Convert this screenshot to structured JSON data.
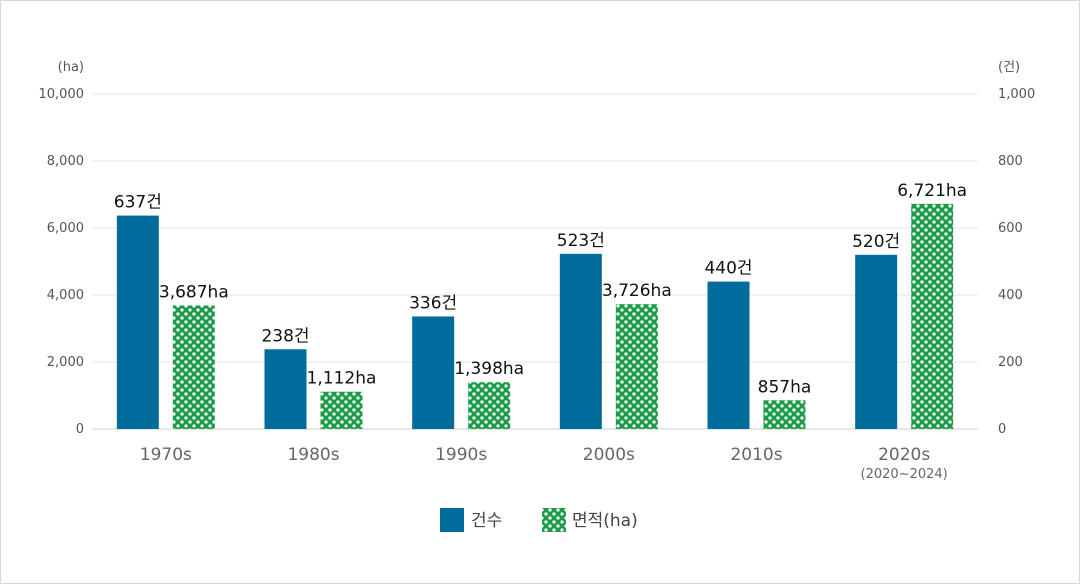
{
  "chart_data": {
    "type": "bar",
    "title": "",
    "categories": [
      "1970s",
      "1980s",
      "1990s",
      "2000s",
      "2010s",
      "2020s"
    ],
    "category_sublabels": [
      "",
      "",
      "",
      "",
      "",
      "(2020~2024)"
    ],
    "series": [
      {
        "name": "건수",
        "axis": "right",
        "values": [
          637,
          238,
          336,
          523,
          440,
          520
        ],
        "labels": [
          "637건",
          "238건",
          "336건",
          "523건",
          "440건",
          "520건"
        ],
        "color": "#006c9b",
        "pattern": "solid"
      },
      {
        "name": "면적(ha)",
        "axis": "left",
        "values": [
          3687,
          1112,
          1398,
          3726,
          857,
          6721
        ],
        "labels": [
          "3,687ha",
          "1,112ha",
          "1,398ha",
          "3,726ha",
          "857ha",
          "6,721ha"
        ],
        "color": "#1a9c48",
        "pattern": "dots"
      }
    ],
    "y_left": {
      "unit": "(ha)",
      "range": [
        0,
        10000
      ],
      "ticks": [
        0,
        2000,
        4000,
        6000,
        8000,
        10000
      ],
      "tick_labels": [
        "0",
        "2,000",
        "4,000",
        "6,000",
        "8,000",
        "10,000"
      ]
    },
    "y_right": {
      "unit": "(건)",
      "range": [
        0,
        1000
      ],
      "ticks": [
        0,
        200,
        400,
        600,
        800,
        1000
      ],
      "tick_labels": [
        "0",
        "200",
        "400",
        "600",
        "800",
        "1,000"
      ]
    },
    "grid": true,
    "legend": "bottom-center"
  }
}
